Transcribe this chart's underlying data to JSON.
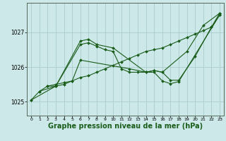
{
  "background_color": "#cce8e8",
  "grid_color": "#aacccc",
  "line_color": "#1a5c1a",
  "marker_color": "#1a5c1a",
  "xlabel": "Graphe pression niveau de la mer (hPa)",
  "xlabel_fontsize": 7.0,
  "ylabel_ticks": [
    1025,
    1026,
    1027
  ],
  "xlim": [
    -0.5,
    23.5
  ],
  "ylim": [
    1024.6,
    1027.85
  ],
  "xticks": [
    0,
    1,
    2,
    3,
    4,
    5,
    6,
    7,
    8,
    9,
    10,
    11,
    12,
    13,
    14,
    15,
    16,
    17,
    18,
    19,
    20,
    21,
    22,
    23
  ],
  "series": [
    {
      "x": [
        0,
        1,
        2,
        3,
        4,
        5,
        6,
        7,
        8,
        9,
        10,
        11,
        12,
        13,
        14,
        15,
        16,
        17,
        18,
        19,
        20,
        21,
        22,
        23
      ],
      "y": [
        1025.05,
        1025.3,
        1025.45,
        1025.5,
        1025.55,
        1025.6,
        1025.7,
        1025.75,
        1025.85,
        1025.95,
        1026.05,
        1026.15,
        1026.25,
        1026.35,
        1026.45,
        1026.5,
        1026.55,
        1026.65,
        1026.75,
        1026.85,
        1026.95,
        1027.05,
        1027.15,
        1027.55
      ]
    },
    {
      "x": [
        0,
        3,
        6,
        7,
        8,
        9,
        10,
        11,
        12,
        13,
        14,
        15,
        16,
        19,
        21,
        23
      ],
      "y": [
        1025.05,
        1025.45,
        1026.65,
        1026.7,
        1026.6,
        1026.5,
        1026.45,
        1025.95,
        1025.85,
        1025.85,
        1025.85,
        1025.9,
        1025.85,
        1026.45,
        1027.2,
        1027.55
      ]
    },
    {
      "x": [
        2,
        3,
        6,
        7,
        8,
        10,
        14,
        15,
        16,
        17,
        18,
        20,
        22,
        23
      ],
      "y": [
        1025.45,
        1025.45,
        1026.75,
        1026.8,
        1026.65,
        1026.55,
        1025.85,
        1025.9,
        1025.85,
        1025.62,
        1025.62,
        1026.3,
        1027.15,
        1027.5
      ]
    },
    {
      "x": [
        1,
        3,
        4,
        5,
        6,
        12,
        14,
        15,
        16,
        17,
        18,
        23
      ],
      "y": [
        1025.3,
        1025.45,
        1025.5,
        1025.6,
        1026.2,
        1025.95,
        1025.85,
        1025.85,
        1025.6,
        1025.52,
        1025.58,
        1027.5
      ]
    }
  ]
}
